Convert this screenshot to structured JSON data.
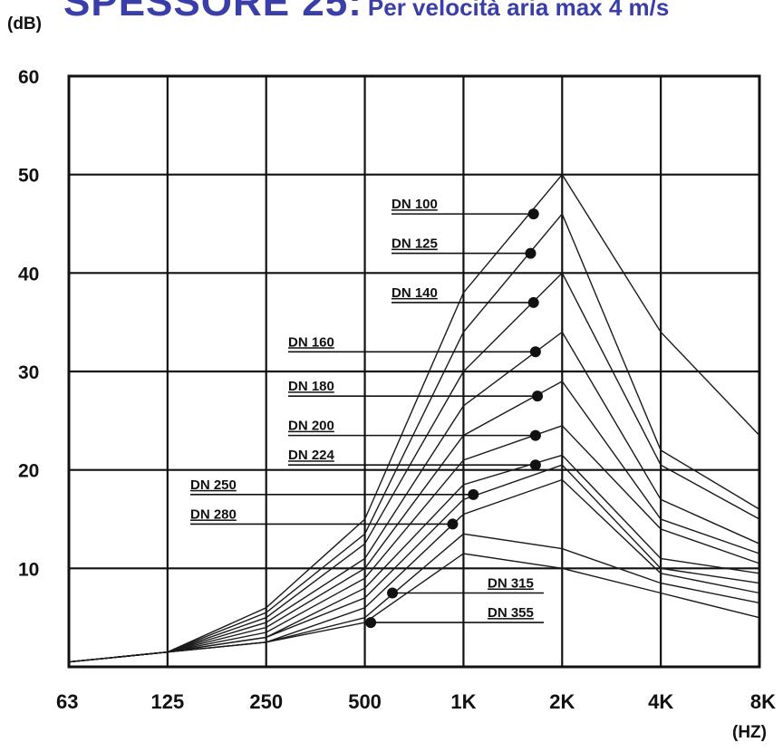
{
  "title": {
    "main": "SPESSORE 25:",
    "sub": "Per velocità aria max 4 m/s"
  },
  "chart_data": {
    "type": "line",
    "ylabel": "(dB)",
    "xlabel": "(HZ)",
    "x_categories": [
      "63",
      "125",
      "250",
      "500",
      "1K",
      "2K",
      "4K",
      "8K"
    ],
    "ylim": [
      0,
      60
    ],
    "yticks": [
      10,
      20,
      30,
      40,
      50,
      60
    ],
    "grid": true,
    "series": [
      {
        "name": "DN 100",
        "values": [
          0.5,
          1.5,
          6,
          15,
          38,
          50,
          34,
          23.5
        ],
        "marker": {
          "x_index": 4.71,
          "y": 46
        }
      },
      {
        "name": "DN 125",
        "values": [
          0.5,
          1.5,
          5.5,
          13.5,
          34,
          46,
          22,
          16
        ],
        "marker": {
          "x_index": 4.68,
          "y": 42
        }
      },
      {
        "name": "DN 140",
        "values": [
          0.5,
          1.5,
          5,
          12.5,
          30,
          40,
          20.5,
          15
        ],
        "marker": {
          "x_index": 4.71,
          "y": 37
        }
      },
      {
        "name": "DN 160",
        "values": [
          0.5,
          1.5,
          4.5,
          11,
          26.5,
          34,
          17,
          12.5
        ],
        "marker": {
          "x_index": 4.73,
          "y": 32
        }
      },
      {
        "name": "DN 180",
        "values": [
          0.5,
          1.5,
          4,
          10,
          23.5,
          29,
          15,
          11.5
        ],
        "marker": {
          "x_index": 4.75,
          "y": 27.5
        }
      },
      {
        "name": "DN 200",
        "values": [
          0.5,
          1.5,
          3.5,
          9,
          21,
          24.5,
          14,
          10.5
        ],
        "marker": {
          "x_index": 4.73,
          "y": 23.5
        }
      },
      {
        "name": "DN 224",
        "values": [
          0.5,
          1.5,
          3,
          8,
          18.5,
          21.5,
          11,
          9.5
        ],
        "marker": {
          "x_index": 4.73,
          "y": 20.5
        }
      },
      {
        "name": "DN 250",
        "values": [
          0.5,
          1.5,
          3,
          7,
          17,
          20.5,
          10,
          8.5
        ],
        "marker": {
          "x_index": 4.1,
          "y": 17.5
        }
      },
      {
        "name": "DN 280",
        "values": [
          0.5,
          1.5,
          2.5,
          6,
          15.5,
          19,
          9.5,
          7.5
        ],
        "marker": {
          "x_index": 3.89,
          "y": 14.5
        }
      },
      {
        "name": "DN 315",
        "values": [
          0.5,
          1.5,
          2.5,
          5,
          13.5,
          12,
          8.5,
          6.5
        ],
        "marker": {
          "x_index": 3.28,
          "y": 7.5
        }
      },
      {
        "name": "DN 355",
        "values": [
          0.5,
          1.5,
          2.5,
          4.5,
          11.5,
          10,
          7.5,
          5
        ],
        "marker": {
          "x_index": 3.06,
          "y": 4.5
        }
      }
    ]
  }
}
